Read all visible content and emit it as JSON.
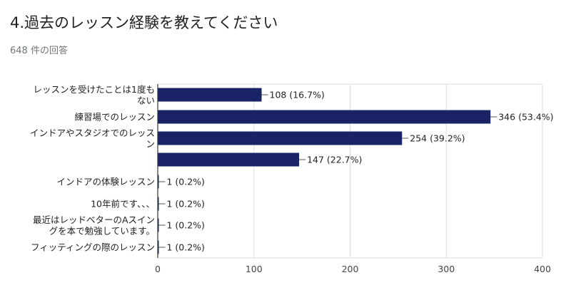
{
  "header": {
    "title": "4.過去のレッスン経験を教えてください",
    "response_count": "648 件の回答"
  },
  "colors": {
    "bar": "#1a2366",
    "grid": "#dddddd",
    "axis": "#333333"
  },
  "chart_data": {
    "type": "bar",
    "orientation": "horizontal",
    "categories": [
      "レッスンを受けたことは1度もない",
      "練習場でのレッスン",
      "インドアやスタジオでのレッスン",
      "",
      "インドアの体験レッスン",
      "10年前です、、、",
      "最近はレッドベターのAスイングを本で勉強しています。",
      "フィッティングの際のレッスン"
    ],
    "category_label_lines": [
      [
        "レッスンを受けたことは1度も",
        "ない"
      ],
      [
        "練習場でのレッスン"
      ],
      [
        "インドアやスタジオでのレッス",
        "ン"
      ],
      [],
      [
        "インドアの体験レッスン"
      ],
      [
        "10年前です、、、"
      ],
      [
        "最近はレッドベターのAスイン",
        "グを本で勉強しています。"
      ],
      [
        "フィッティングの際のレッスン"
      ]
    ],
    "values": [
      108,
      346,
      254,
      147,
      1,
      1,
      1,
      1
    ],
    "data_labels": [
      "108 (16.7%)",
      "346 (53.4%)",
      "254 (39.2%)",
      "147 (22.7%)",
      "1 (0.2%)",
      "1 (0.2%)",
      "1 (0.2%)",
      "1 (0.2%)"
    ],
    "xlim": [
      0,
      400
    ],
    "xticks": [
      0,
      100,
      200,
      300,
      400
    ],
    "grid": true
  }
}
